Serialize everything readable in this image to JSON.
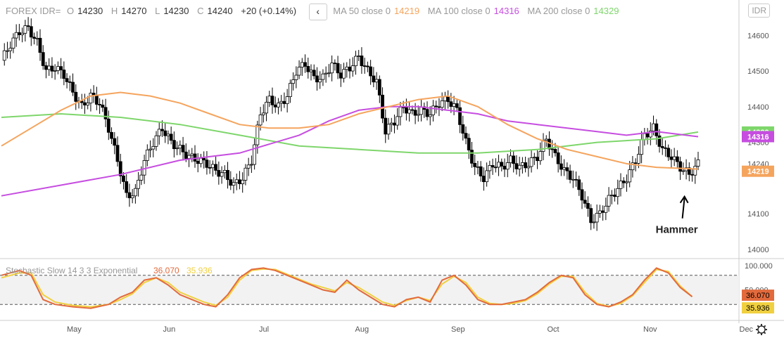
{
  "header": {
    "symbol": "FOREX IDR=",
    "o_label": "O",
    "o": "14230",
    "h_label": "H",
    "h": "14270",
    "l_label": "L",
    "l": "14230",
    "c_label": "C",
    "c": "14240",
    "change": "+20 (+0.14%)",
    "ma50_label": "MA 50 close 0",
    "ma50_value": "14219",
    "ma100_label": "MA 100 close 0",
    "ma100_value": "14316",
    "ma200_label": "MA 200 close 0",
    "ma200_value": "14329",
    "back_icon": "chevron-left-icon"
  },
  "currency_button": "IDR",
  "settings_icon": "gear-icon",
  "colors": {
    "ma50": "#f5a45d",
    "ma100": "#c64de0",
    "ma200": "#7ed66b",
    "stoch_k": "#e26a3c",
    "stoch_d": "#f0d040",
    "candle": "#000000"
  },
  "chart_data": [
    {
      "type": "candlestick",
      "y_ticks": [
        "14000",
        "14100",
        "14240",
        "14300",
        "14400",
        "14500",
        "14600"
      ],
      "ylim": [
        13980,
        14640
      ],
      "x_ticks": [
        "May",
        "Jun",
        "Jul",
        "Aug",
        "Sep",
        "Oct",
        "Nov",
        "Dec"
      ],
      "last_price": "14240",
      "price_labels": [
        {
          "text": "14329",
          "value": 14329,
          "color": "#7ed66b"
        },
        {
          "text": "14316",
          "value": 14316,
          "color": "#c64de0"
        },
        {
          "text": "14219",
          "value": 14219,
          "color": "#f5a45d"
        }
      ],
      "annotation": "Hammer",
      "series_points": {
        "close": [
          [
            0,
            14530
          ],
          [
            3,
            14575
          ],
          [
            6,
            14610
          ],
          [
            9,
            14620
          ],
          [
            12,
            14580
          ],
          [
            15,
            14500
          ],
          [
            18,
            14510
          ],
          [
            21,
            14490
          ],
          [
            24,
            14440
          ],
          [
            27,
            14400
          ],
          [
            30,
            14430
          ],
          [
            33,
            14410
          ],
          [
            36,
            14340
          ],
          [
            39,
            14250
          ],
          [
            42,
            14150
          ],
          [
            45,
            14160
          ],
          [
            48,
            14250
          ],
          [
            51,
            14300
          ],
          [
            54,
            14340
          ],
          [
            57,
            14300
          ],
          [
            60,
            14280
          ],
          [
            63,
            14260
          ],
          [
            66,
            14250
          ],
          [
            69,
            14240
          ],
          [
            72,
            14220
          ],
          [
            75,
            14210
          ],
          [
            78,
            14180
          ],
          [
            81,
            14200
          ],
          [
            84,
            14250
          ],
          [
            87,
            14380
          ],
          [
            90,
            14420
          ],
          [
            93,
            14400
          ],
          [
            96,
            14430
          ],
          [
            99,
            14500
          ],
          [
            102,
            14520
          ],
          [
            105,
            14480
          ],
          [
            108,
            14480
          ],
          [
            111,
            14520
          ],
          [
            114,
            14490
          ],
          [
            117,
            14510
          ],
          [
            120,
            14540
          ],
          [
            123,
            14500
          ],
          [
            126,
            14470
          ],
          [
            129,
            14330
          ],
          [
            132,
            14360
          ],
          [
            135,
            14400
          ],
          [
            138,
            14380
          ],
          [
            141,
            14390
          ],
          [
            144,
            14380
          ],
          [
            147,
            14410
          ],
          [
            150,
            14420
          ],
          [
            153,
            14390
          ],
          [
            156,
            14300
          ],
          [
            159,
            14230
          ],
          [
            162,
            14200
          ],
          [
            165,
            14240
          ],
          [
            168,
            14230
          ],
          [
            171,
            14250
          ],
          [
            174,
            14230
          ],
          [
            177,
            14240
          ],
          [
            180,
            14260
          ],
          [
            183,
            14310
          ],
          [
            186,
            14260
          ],
          [
            189,
            14220
          ],
          [
            192,
            14200
          ],
          [
            195,
            14150
          ],
          [
            198,
            14080
          ],
          [
            201,
            14100
          ],
          [
            204,
            14140
          ],
          [
            207,
            14170
          ],
          [
            210,
            14200
          ],
          [
            213,
            14250
          ],
          [
            216,
            14320
          ],
          [
            219,
            14340
          ],
          [
            222,
            14280
          ],
          [
            225,
            14260
          ],
          [
            228,
            14230
          ],
          [
            231,
            14210
          ],
          [
            234,
            14240
          ]
        ],
        "ma50": [
          [
            0,
            14290
          ],
          [
            10,
            14340
          ],
          [
            20,
            14390
          ],
          [
            30,
            14430
          ],
          [
            40,
            14440
          ],
          [
            50,
            14430
          ],
          [
            60,
            14410
          ],
          [
            70,
            14380
          ],
          [
            80,
            14350
          ],
          [
            90,
            14340
          ],
          [
            100,
            14340
          ],
          [
            110,
            14350
          ],
          [
            120,
            14380
          ],
          [
            130,
            14400
          ],
          [
            140,
            14420
          ],
          [
            150,
            14430
          ],
          [
            160,
            14400
          ],
          [
            170,
            14350
          ],
          [
            180,
            14310
          ],
          [
            190,
            14280
          ],
          [
            200,
            14260
          ],
          [
            210,
            14240
          ],
          [
            220,
            14230
          ],
          [
            234,
            14225
          ]
        ],
        "ma100": [
          [
            0,
            14150
          ],
          [
            20,
            14180
          ],
          [
            40,
            14210
          ],
          [
            60,
            14250
          ],
          [
            80,
            14270
          ],
          [
            100,
            14320
          ],
          [
            110,
            14360
          ],
          [
            120,
            14390
          ],
          [
            130,
            14400
          ],
          [
            140,
            14400
          ],
          [
            150,
            14390
          ],
          [
            160,
            14380
          ],
          [
            170,
            14360
          ],
          [
            180,
            14350
          ],
          [
            190,
            14340
          ],
          [
            200,
            14330
          ],
          [
            210,
            14320
          ],
          [
            220,
            14330
          ],
          [
            234,
            14316
          ]
        ],
        "ma200": [
          [
            0,
            14370
          ],
          [
            20,
            14380
          ],
          [
            40,
            14370
          ],
          [
            60,
            14350
          ],
          [
            80,
            14320
          ],
          [
            100,
            14290
          ],
          [
            120,
            14280
          ],
          [
            140,
            14270
          ],
          [
            160,
            14270
          ],
          [
            180,
            14280
          ],
          [
            200,
            14300
          ],
          [
            220,
            14310
          ],
          [
            234,
            14329
          ]
        ]
      }
    },
    {
      "type": "line",
      "title": "Stochastic Slow 14 3 3 Exponential",
      "series": [
        {
          "name": "K",
          "value_label": "36.070",
          "values": [
            [
              0,
              80
            ],
            [
              6,
              90
            ],
            [
              10,
              80
            ],
            [
              14,
              30
            ],
            [
              18,
              20
            ],
            [
              24,
              15
            ],
            [
              30,
              12
            ],
            [
              36,
              20
            ],
            [
              40,
              35
            ],
            [
              44,
              45
            ],
            [
              48,
              70
            ],
            [
              52,
              75
            ],
            [
              56,
              60
            ],
            [
              60,
              40
            ],
            [
              64,
              30
            ],
            [
              68,
              20
            ],
            [
              72,
              15
            ],
            [
              76,
              40
            ],
            [
              80,
              75
            ],
            [
              84,
              92
            ],
            [
              88,
              95
            ],
            [
              92,
              90
            ],
            [
              96,
              80
            ],
            [
              100,
              70
            ],
            [
              104,
              60
            ],
            [
              108,
              50
            ],
            [
              112,
              45
            ],
            [
              116,
              70
            ],
            [
              120,
              50
            ],
            [
              124,
              35
            ],
            [
              128,
              20
            ],
            [
              132,
              15
            ],
            [
              136,
              30
            ],
            [
              140,
              35
            ],
            [
              144,
              25
            ],
            [
              148,
              70
            ],
            [
              152,
              80
            ],
            [
              156,
              60
            ],
            [
              160,
              30
            ],
            [
              164,
              20
            ],
            [
              168,
              20
            ],
            [
              172,
              25
            ],
            [
              176,
              30
            ],
            [
              180,
              45
            ],
            [
              184,
              65
            ],
            [
              188,
              80
            ],
            [
              192,
              75
            ],
            [
              196,
              40
            ],
            [
              200,
              20
            ],
            [
              204,
              15
            ],
            [
              208,
              25
            ],
            [
              212,
              40
            ],
            [
              216,
              70
            ],
            [
              220,
              95
            ],
            [
              224,
              85
            ],
            [
              228,
              55
            ],
            [
              232,
              36
            ]
          ]
        },
        {
          "name": "D",
          "value_label": "35.936",
          "values": [
            [
              0,
              75
            ],
            [
              6,
              85
            ],
            [
              10,
              85
            ],
            [
              14,
              40
            ],
            [
              18,
              25
            ],
            [
              24,
              18
            ],
            [
              30,
              15
            ],
            [
              36,
              20
            ],
            [
              40,
              30
            ],
            [
              44,
              42
            ],
            [
              48,
              65
            ],
            [
              52,
              75
            ],
            [
              56,
              65
            ],
            [
              60,
              45
            ],
            [
              64,
              35
            ],
            [
              68,
              25
            ],
            [
              72,
              18
            ],
            [
              76,
              35
            ],
            [
              80,
              70
            ],
            [
              84,
              90
            ],
            [
              88,
              93
            ],
            [
              92,
              92
            ],
            [
              96,
              82
            ],
            [
              100,
              72
            ],
            [
              104,
              62
            ],
            [
              108,
              55
            ],
            [
              112,
              48
            ],
            [
              116,
              65
            ],
            [
              120,
              55
            ],
            [
              124,
              40
            ],
            [
              128,
              25
            ],
            [
              132,
              18
            ],
            [
              136,
              28
            ],
            [
              140,
              35
            ],
            [
              144,
              28
            ],
            [
              148,
              62
            ],
            [
              152,
              78
            ],
            [
              156,
              65
            ],
            [
              160,
              35
            ],
            [
              164,
              22
            ],
            [
              168,
              20
            ],
            [
              172,
              22
            ],
            [
              176,
              28
            ],
            [
              180,
              42
            ],
            [
              184,
              62
            ],
            [
              188,
              78
            ],
            [
              192,
              78
            ],
            [
              196,
              45
            ],
            [
              200,
              22
            ],
            [
              204,
              16
            ],
            [
              208,
              22
            ],
            [
              212,
              38
            ],
            [
              216,
              65
            ],
            [
              220,
              92
            ],
            [
              224,
              88
            ],
            [
              228,
              58
            ],
            [
              232,
              36
            ]
          ]
        }
      ],
      "y_ticks": [
        "100.000",
        "50.000"
      ],
      "ylim": [
        0,
        100
      ]
    }
  ]
}
